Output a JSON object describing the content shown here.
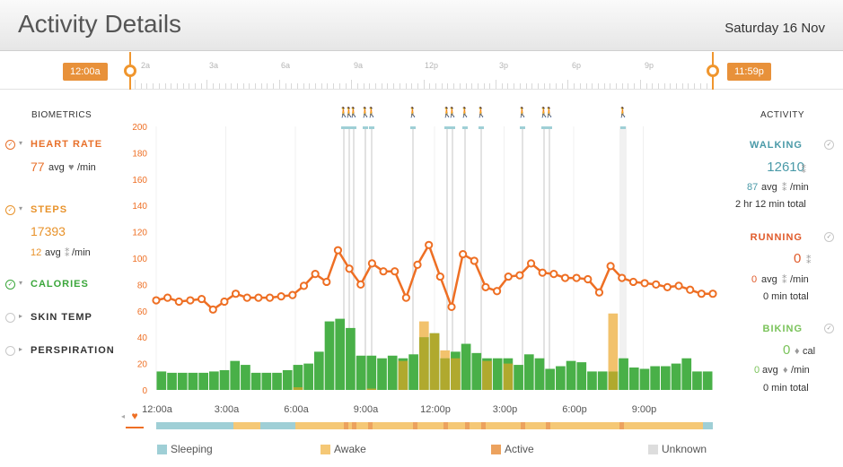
{
  "header": {
    "title": "Activity Details",
    "date": "Saturday 16 Nov"
  },
  "timeline": {
    "labels": [
      "2a",
      "3a",
      "6a",
      "9a",
      "12p",
      "3p",
      "6p",
      "9p"
    ],
    "start_handle": "12:00a",
    "end_handle": "11:59p"
  },
  "biometrics": {
    "title": "BIOMETRICS",
    "heart_rate": {
      "label": "HEART RATE",
      "value": "77",
      "unit": "avg",
      "per": "/min",
      "color": "#e8702a"
    },
    "steps": {
      "label": "STEPS",
      "value": "17393",
      "avg": "12",
      "avg_unit": "avg",
      "per": "/min",
      "color": "#e8922a"
    },
    "calories": {
      "label": "CALORIES",
      "color": "#3aa63a"
    },
    "skin_temp": {
      "label": "SKIN TEMP"
    },
    "perspiration": {
      "label": "PERSPIRATION"
    }
  },
  "activity": {
    "title": "ACTIVITY",
    "walking": {
      "label": "WALKING",
      "value": "12610",
      "avg": "87",
      "avg_unit": "avg",
      "per": "/min",
      "total": "2 hr 12 min total",
      "color": "#4a9aa8"
    },
    "running": {
      "label": "RUNNING",
      "value": "0",
      "avg": "0",
      "avg_unit": "avg",
      "per": "/min",
      "total": "0 min total",
      "color": "#e05a2a"
    },
    "biking": {
      "label": "BIKING",
      "value": "0",
      "cal": "cal",
      "avg": "0",
      "avg_unit": "avg",
      "per": "/min",
      "total": "0 min total",
      "color": "#7ac35a"
    }
  },
  "legend": {
    "items": [
      {
        "label": "Sleeping",
        "color": "#9fcfd6"
      },
      {
        "label": "Awake",
        "color": "#f5c876"
      },
      {
        "label": "Active",
        "color": "#eca25e"
      },
      {
        "label": "Unknown",
        "color": "#dddddd"
      }
    ]
  },
  "chart_data": {
    "type": "bar",
    "ylim": [
      0,
      200
    ],
    "yticks": [
      "200",
      "180",
      "160",
      "140",
      "120",
      "100",
      "80",
      "60",
      "40",
      "20",
      "0"
    ],
    "xticks": [
      "12:00a",
      "3:00a",
      "6:00a",
      "9:00a",
      "12:00p",
      "3:00p",
      "6:00p",
      "9:00p"
    ],
    "series": [
      {
        "name": "CALORIES",
        "color": "#49b048",
        "values": [
          14,
          13,
          13,
          13,
          13,
          14,
          15,
          22,
          19,
          13,
          13,
          13,
          15,
          19,
          20,
          29,
          52,
          54,
          47,
          26,
          26,
          24,
          26,
          24,
          27,
          40,
          43,
          24,
          29,
          35,
          28,
          24,
          24,
          24,
          19,
          27,
          24,
          16,
          18,
          22,
          21,
          14,
          14,
          14,
          24,
          17,
          16,
          18,
          18,
          20,
          24,
          14,
          14
        ]
      },
      {
        "name": "STEPS",
        "color": "#c2a82a",
        "values": [
          0,
          0,
          0,
          0,
          0,
          0,
          0,
          0,
          0,
          0,
          0,
          0,
          0,
          2,
          0,
          0,
          0,
          0,
          0,
          0,
          1,
          0,
          0,
          22,
          0,
          52,
          43,
          30,
          24,
          0,
          0,
          22,
          0,
          20,
          0,
          0,
          0,
          0,
          0,
          0,
          0,
          0,
          0,
          58,
          0,
          0,
          0,
          0,
          0,
          0,
          0,
          0,
          0
        ]
      },
      {
        "name": "HEART RATE",
        "color": "#ee6f24",
        "values": [
          68,
          70,
          67,
          68,
          69,
          61,
          67,
          73,
          70,
          70,
          70,
          71,
          72,
          79,
          88,
          82,
          106,
          92,
          80,
          96,
          90,
          90,
          70,
          95,
          110,
          86,
          63,
          103,
          98,
          78,
          75,
          86,
          87,
          96,
          89,
          88,
          85,
          85,
          84,
          74,
          94,
          85,
          82,
          81,
          80,
          78,
          79,
          76,
          73,
          73
        ]
      }
    ],
    "activity_markers": [
      "walking",
      "walking",
      "walking",
      "walking",
      "walking",
      "walking",
      "walking",
      "walking",
      "walking",
      "walking",
      "walking",
      "walking",
      "walking"
    ]
  }
}
